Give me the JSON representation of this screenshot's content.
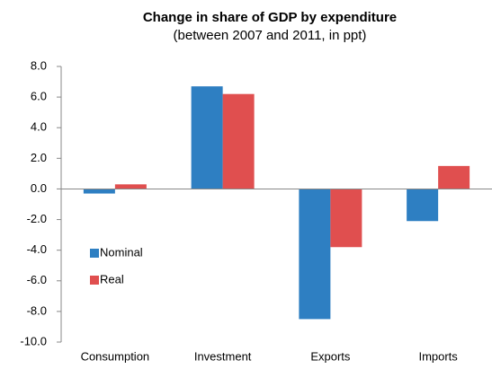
{
  "chart_data": {
    "type": "bar",
    "title": "Change in share of GDP by expenditure",
    "subtitle": "(between 2007 and 2011, in ppt)",
    "categories": [
      "Consumption",
      "Investment",
      "Exports",
      "Imports"
    ],
    "series": [
      {
        "name": "Nominal",
        "color": "#2e7fc2",
        "values": [
          -0.3,
          6.7,
          -8.5,
          -2.1
        ]
      },
      {
        "name": "Real",
        "color": "#e04f4f",
        "values": [
          0.3,
          6.2,
          -3.8,
          1.5
        ]
      }
    ],
    "ylim": [
      -10,
      8
    ],
    "yticks": [
      {
        "value": -10,
        "label": "-10.0"
      },
      {
        "value": -8,
        "label": "-8.0"
      },
      {
        "value": -6,
        "label": "-6.0"
      },
      {
        "value": -4,
        "label": "-4.0"
      },
      {
        "value": -2,
        "label": "-2.0"
      },
      {
        "value": 0,
        "label": "0.0"
      },
      {
        "value": 2,
        "label": "2.0"
      },
      {
        "value": 4,
        "label": "4.0"
      },
      {
        "value": 6,
        "label": "6.0"
      },
      {
        "value": 8,
        "label": "8.0"
      }
    ],
    "legend": "left"
  }
}
